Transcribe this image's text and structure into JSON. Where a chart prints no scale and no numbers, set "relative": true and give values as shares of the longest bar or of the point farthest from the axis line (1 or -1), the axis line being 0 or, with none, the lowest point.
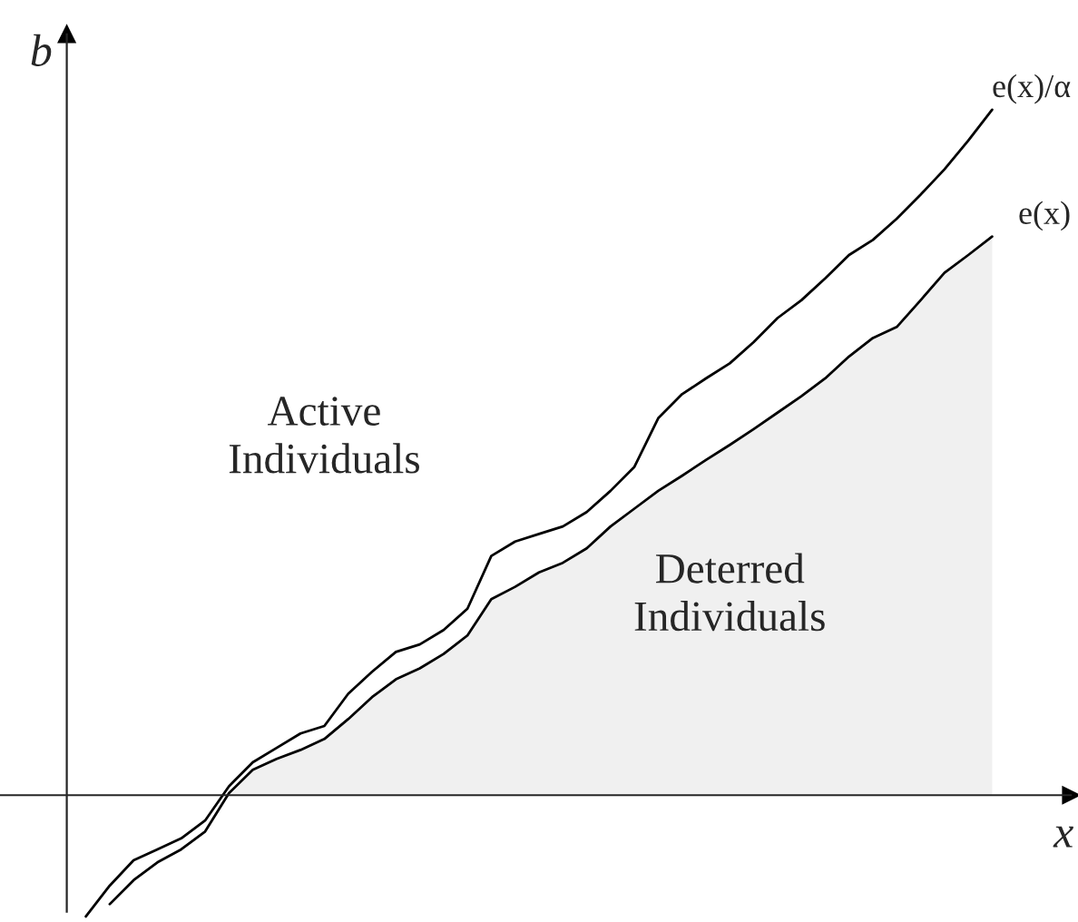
{
  "chart_data": {
    "type": "line",
    "relative": true,
    "xlabel": "x",
    "ylabel": "b",
    "categories": [
      null,
      null,
      null,
      null,
      null,
      null,
      null,
      null,
      null,
      null,
      null,
      null,
      null,
      null,
      null,
      null,
      null,
      null,
      null,
      null,
      null,
      null,
      null,
      null,
      null,
      null,
      null,
      null,
      null,
      null,
      null,
      null,
      null,
      null,
      null,
      null,
      null,
      null,
      null
    ],
    "series": [
      {
        "type": "area",
        "color": "#f0f0f0",
        "values": [
          null,
          null,
          null,
          null,
          null,
          null,
          0.003,
          0.037,
          0.053,
          0.066,
          0.082,
          0.111,
          0.143,
          0.169,
          0.185,
          0.206,
          0.233,
          0.286,
          0.304,
          0.325,
          0.339,
          0.36,
          0.392,
          0.418,
          0.444,
          0.466,
          0.489,
          0.511,
          0.534,
          0.558,
          0.582,
          0.608,
          0.64,
          0.667,
          0.683,
          0.722,
          0.762,
          0.788,
          0.815
        ]
      },
      {
        "name": "e(x)/α",
        "color": "#000000",
        "values": [
          -0.177,
          -0.132,
          -0.095,
          -0.079,
          -0.063,
          -0.037,
          0.013,
          0.048,
          0.069,
          0.09,
          0.101,
          0.148,
          0.18,
          0.209,
          0.22,
          0.241,
          0.272,
          0.349,
          0.37,
          0.381,
          0.392,
          0.413,
          0.444,
          0.479,
          0.55,
          0.585,
          0.608,
          0.63,
          0.661,
          0.696,
          0.722,
          0.754,
          0.788,
          0.81,
          0.841,
          0.876,
          0.913,
          0.955,
          1.0
        ]
      },
      {
        "name": "e(x)",
        "color": "#000000",
        "values": [
          null,
          -0.159,
          -0.124,
          -0.098,
          -0.079,
          -0.053,
          0.003,
          0.037,
          0.053,
          0.066,
          0.082,
          0.111,
          0.143,
          0.169,
          0.185,
          0.206,
          0.233,
          0.286,
          0.304,
          0.325,
          0.339,
          0.36,
          0.392,
          0.418,
          0.444,
          0.466,
          0.489,
          0.511,
          0.534,
          0.558,
          0.582,
          0.608,
          0.64,
          0.667,
          0.683,
          0.722,
          0.762,
          0.788,
          0.815
        ]
      }
    ],
    "annotations": [
      "Active\nIndividuals",
      "Deterred\nIndividuals"
    ],
    "legend": false
  }
}
